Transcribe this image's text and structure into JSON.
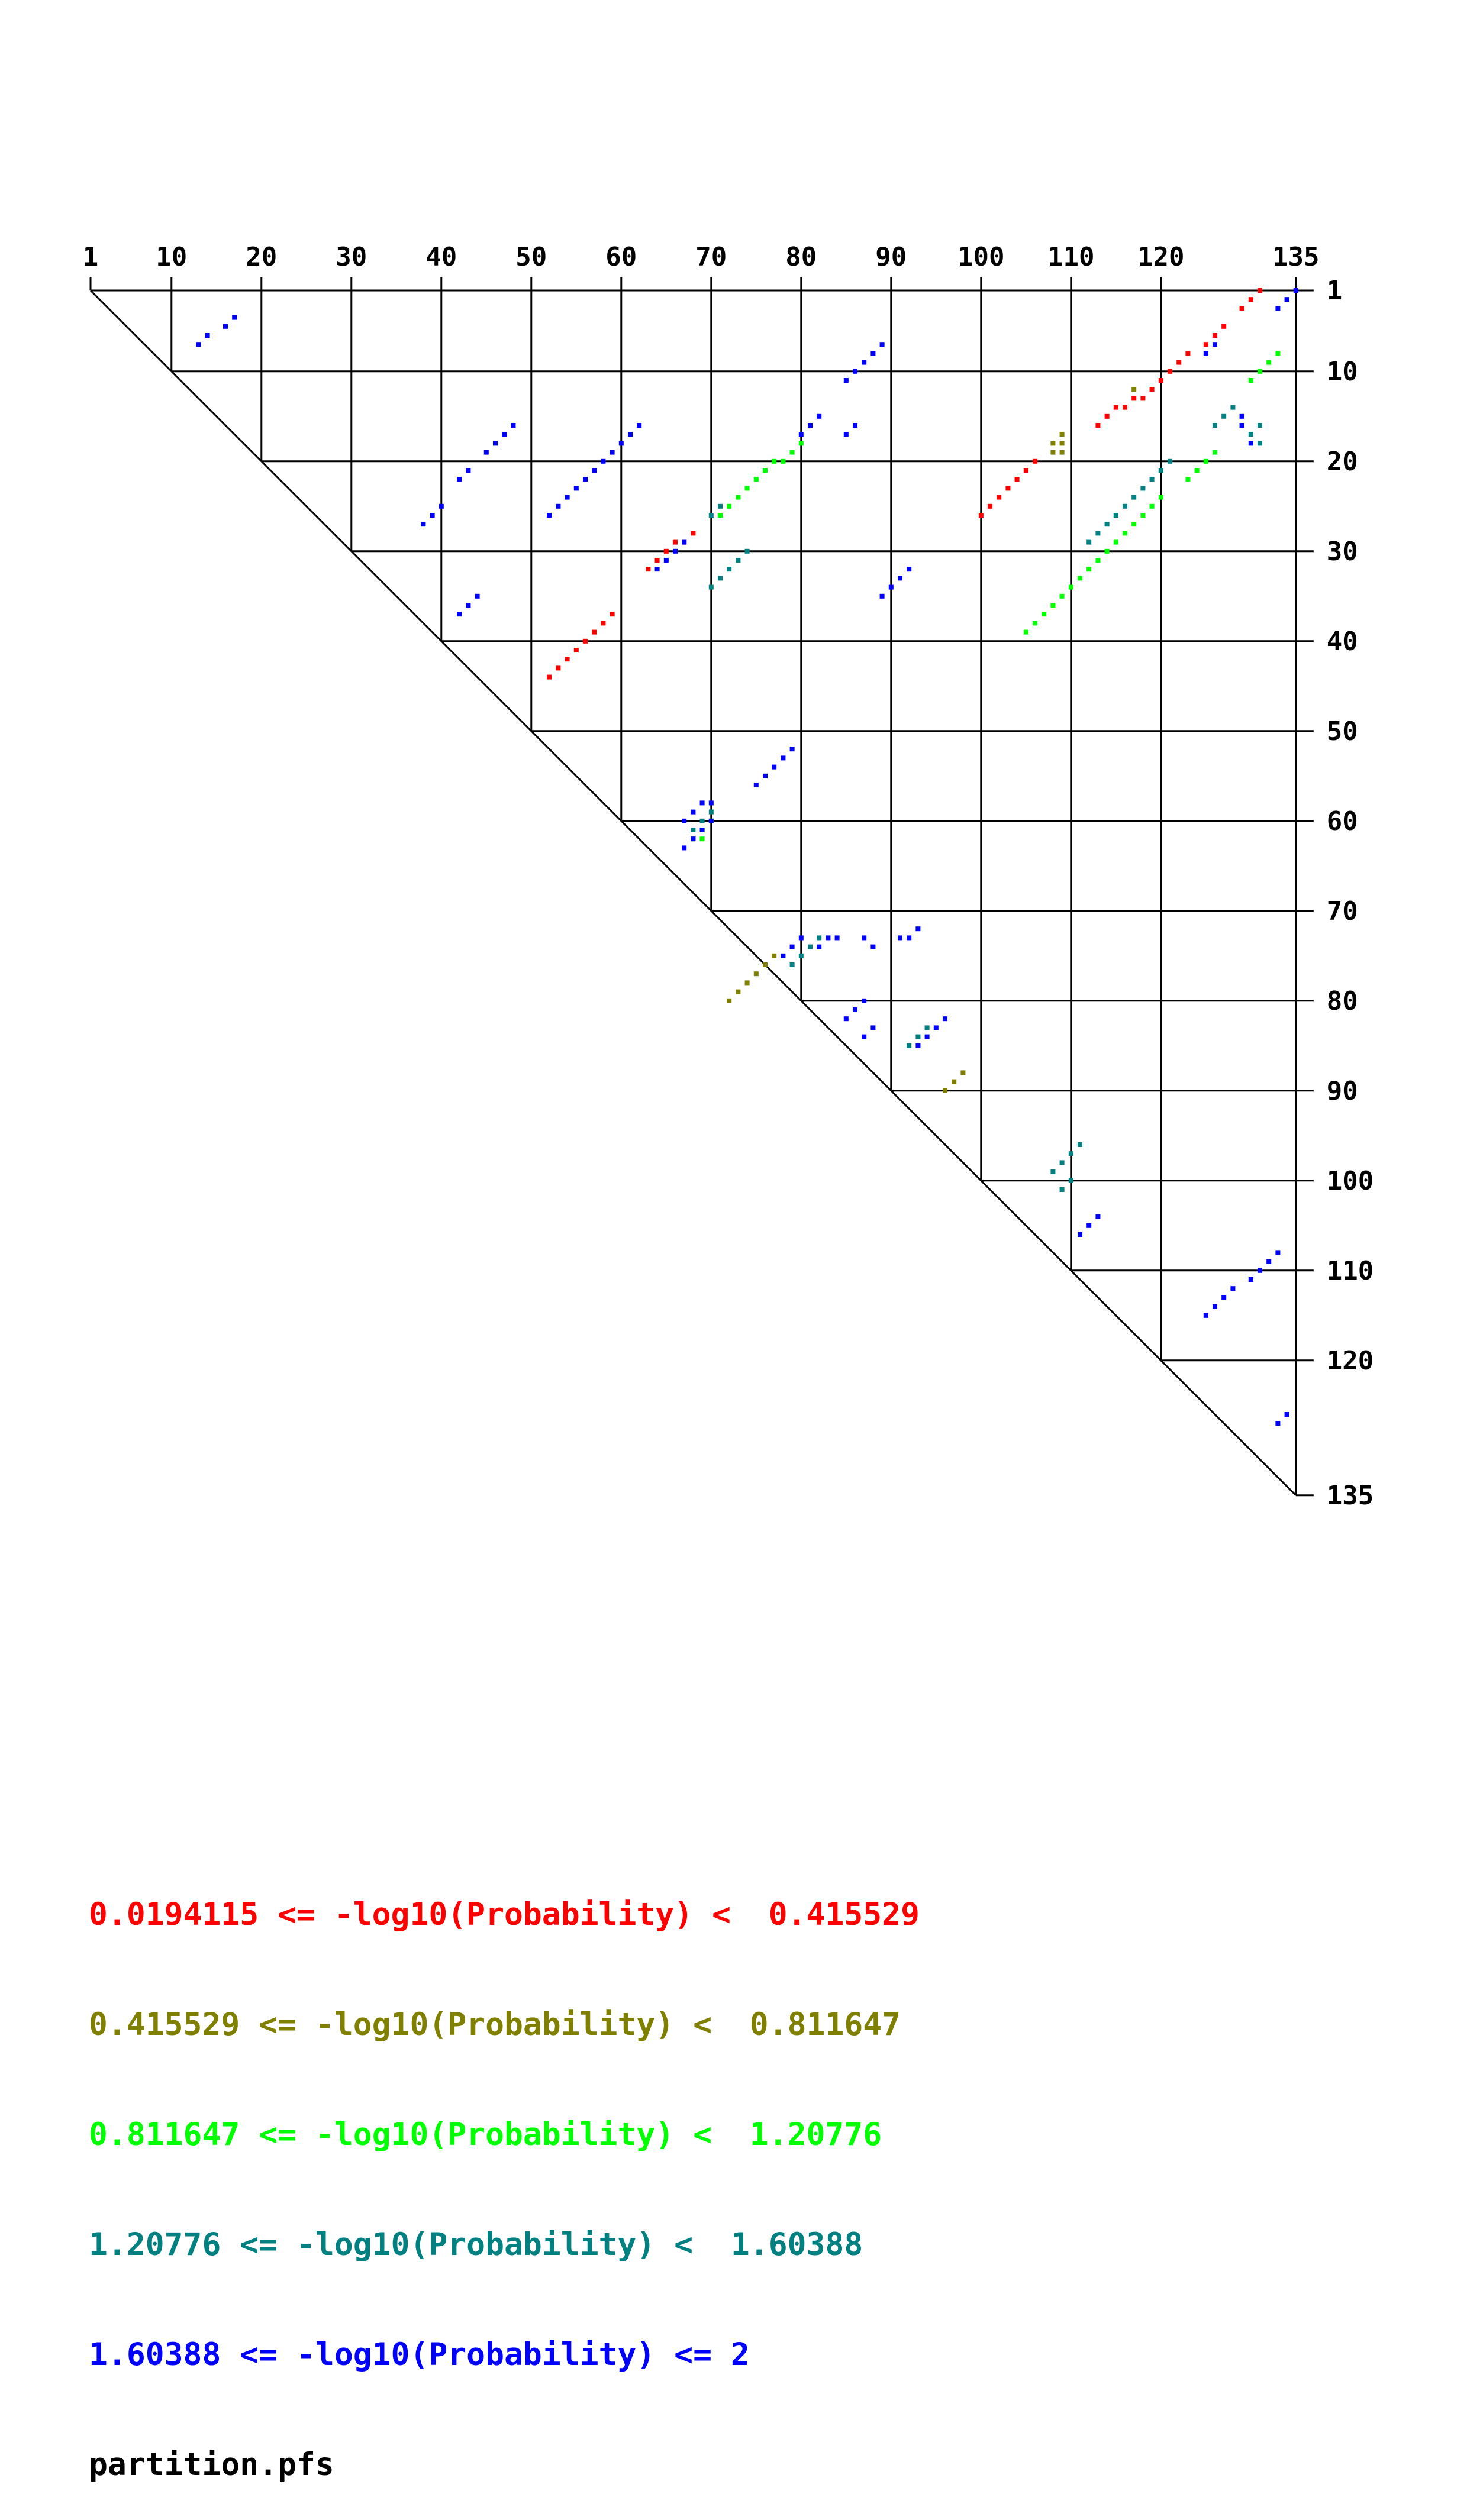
{
  "chart_data": {
    "type": "scatter",
    "title": "",
    "n": 135,
    "top_ticks": [
      1,
      10,
      20,
      30,
      40,
      50,
      60,
      70,
      80,
      90,
      100,
      110,
      120,
      135
    ],
    "right_ticks": [
      1,
      10,
      20,
      30,
      40,
      50,
      60,
      70,
      80,
      90,
      100,
      110,
      120,
      135
    ],
    "grid": true,
    "legend": [
      {
        "label": "0.0194115 <= -log10(Probability) <  0.415529",
        "color": "#ff0000"
      },
      {
        "label": "0.415529 <= -log10(Probability) <  0.811647",
        "color": "#808000"
      },
      {
        "label": "0.811647 <= -log10(Probability) <  1.20776",
        "color": "#00ff00"
      },
      {
        "label": "1.20776 <= -log10(Probability) <  1.60388",
        "color": "#008080"
      },
      {
        "label": "1.60388 <= -log10(Probability) <= 2",
        "color": "#0000ff"
      }
    ],
    "footer": "partition.pfs",
    "series": [
      {
        "name": "0.0194115 <= -log10(Probability) <  0.415529",
        "color": "#ff0000",
        "points": [
          [
            131,
            1
          ],
          [
            130,
            2
          ],
          [
            129,
            3
          ],
          [
            127,
            5
          ],
          [
            126,
            6
          ],
          [
            125,
            7
          ],
          [
            123,
            8
          ],
          [
            122,
            9
          ],
          [
            121,
            10
          ],
          [
            120,
            11
          ],
          [
            119,
            12
          ],
          [
            118,
            13
          ],
          [
            117,
            13
          ],
          [
            116,
            14
          ],
          [
            115,
            14
          ],
          [
            114,
            15
          ],
          [
            113,
            16
          ],
          [
            106,
            20
          ],
          [
            105,
            21
          ],
          [
            104,
            22
          ],
          [
            103,
            23
          ],
          [
            102,
            24
          ],
          [
            101,
            25
          ],
          [
            100,
            26
          ],
          [
            68,
            28
          ],
          [
            67,
            29
          ],
          [
            66,
            29
          ],
          [
            65,
            30
          ],
          [
            64,
            31
          ],
          [
            63,
            32
          ],
          [
            59,
            37
          ],
          [
            58,
            38
          ],
          [
            57,
            39
          ],
          [
            56,
            40
          ],
          [
            55,
            41
          ],
          [
            54,
            42
          ],
          [
            53,
            43
          ],
          [
            52,
            44
          ]
        ]
      },
      {
        "name": "0.415529 <= -log10(Probability) <  0.811647",
        "color": "#808000",
        "points": [
          [
            117,
            12
          ],
          [
            109,
            17
          ],
          [
            109,
            18
          ],
          [
            108,
            18
          ],
          [
            109,
            19
          ],
          [
            108,
            19
          ],
          [
            77,
            75
          ],
          [
            76,
            76
          ],
          [
            75,
            77
          ],
          [
            74,
            78
          ],
          [
            73,
            79
          ],
          [
            72,
            80
          ],
          [
            98,
            88
          ],
          [
            97,
            89
          ],
          [
            96,
            90
          ]
        ]
      },
      {
        "name": "0.811647 <= -log10(Probability) <  1.20776",
        "color": "#00ff00",
        "points": [
          [
            133,
            8
          ],
          [
            132,
            9
          ],
          [
            131,
            10
          ],
          [
            130,
            11
          ],
          [
            126,
            19
          ],
          [
            125,
            20
          ],
          [
            124,
            21
          ],
          [
            123,
            22
          ],
          [
            80,
            18
          ],
          [
            79,
            19
          ],
          [
            78,
            20
          ],
          [
            77,
            20
          ],
          [
            76,
            21
          ],
          [
            75,
            22
          ],
          [
            74,
            23
          ],
          [
            73,
            24
          ],
          [
            72,
            25
          ],
          [
            71,
            26
          ],
          [
            120,
            24
          ],
          [
            119,
            25
          ],
          [
            118,
            26
          ],
          [
            117,
            27
          ],
          [
            116,
            28
          ],
          [
            115,
            29
          ],
          [
            114,
            30
          ],
          [
            113,
            31
          ],
          [
            112,
            32
          ],
          [
            111,
            33
          ],
          [
            110,
            34
          ],
          [
            109,
            35
          ],
          [
            108,
            36
          ],
          [
            107,
            37
          ],
          [
            106,
            38
          ],
          [
            105,
            39
          ],
          [
            70,
            60
          ],
          [
            69,
            61
          ],
          [
            68,
            62
          ],
          [
            69,
            62
          ]
        ]
      },
      {
        "name": "1.20776 <= -log10(Probability) <  1.60388",
        "color": "#008080",
        "points": [
          [
            128,
            14
          ],
          [
            127,
            15
          ],
          [
            126,
            16
          ],
          [
            131,
            16
          ],
          [
            130,
            17
          ],
          [
            131,
            18
          ],
          [
            121,
            20
          ],
          [
            120,
            21
          ],
          [
            119,
            22
          ],
          [
            118,
            23
          ],
          [
            117,
            24
          ],
          [
            116,
            25
          ],
          [
            115,
            26
          ],
          [
            114,
            27
          ],
          [
            113,
            28
          ],
          [
            112,
            29
          ],
          [
            71,
            25
          ],
          [
            70,
            26
          ],
          [
            74,
            30
          ],
          [
            73,
            31
          ],
          [
            72,
            32
          ],
          [
            71,
            33
          ],
          [
            70,
            34
          ],
          [
            70,
            59
          ],
          [
            69,
            60
          ],
          [
            68,
            61
          ],
          [
            81,
            74
          ],
          [
            80,
            75
          ],
          [
            82,
            73
          ],
          [
            79,
            76
          ],
          [
            94,
            83
          ],
          [
            93,
            84
          ],
          [
            92,
            85
          ],
          [
            111,
            96
          ],
          [
            110,
            97
          ],
          [
            109,
            98
          ],
          [
            108,
            99
          ],
          [
            110,
            100
          ],
          [
            109,
            101
          ]
        ]
      },
      {
        "name": "1.60388 <= -log10(Probability) <= 2",
        "color": "#0000ff",
        "points": [
          [
            135,
            1
          ],
          [
            134,
            2
          ],
          [
            133,
            3
          ],
          [
            17,
            4
          ],
          [
            16,
            5
          ],
          [
            14,
            6
          ],
          [
            13,
            7
          ],
          [
            89,
            7
          ],
          [
            88,
            8
          ],
          [
            87,
            9
          ],
          [
            86,
            10
          ],
          [
            85,
            11
          ],
          [
            126,
            7
          ],
          [
            125,
            8
          ],
          [
            82,
            15
          ],
          [
            81,
            16
          ],
          [
            80,
            17
          ],
          [
            86,
            16
          ],
          [
            85,
            17
          ],
          [
            129,
            15
          ],
          [
            129,
            16
          ],
          [
            130,
            18
          ],
          [
            48,
            16
          ],
          [
            47,
            17
          ],
          [
            46,
            18
          ],
          [
            45,
            19
          ],
          [
            43,
            21
          ],
          [
            42,
            22
          ],
          [
            62,
            16
          ],
          [
            61,
            17
          ],
          [
            60,
            18
          ],
          [
            59,
            19
          ],
          [
            58,
            20
          ],
          [
            57,
            21
          ],
          [
            56,
            22
          ],
          [
            55,
            23
          ],
          [
            54,
            24
          ],
          [
            53,
            25
          ],
          [
            52,
            26
          ],
          [
            40,
            25
          ],
          [
            39,
            26
          ],
          [
            38,
            27
          ],
          [
            67,
            29
          ],
          [
            66,
            30
          ],
          [
            65,
            31
          ],
          [
            64,
            32
          ],
          [
            92,
            32
          ],
          [
            91,
            33
          ],
          [
            90,
            34
          ],
          [
            89,
            35
          ],
          [
            44,
            35
          ],
          [
            43,
            36
          ],
          [
            42,
            37
          ],
          [
            79,
            52
          ],
          [
            78,
            53
          ],
          [
            77,
            54
          ],
          [
            76,
            55
          ],
          [
            75,
            56
          ],
          [
            70,
            58
          ],
          [
            69,
            58
          ],
          [
            68,
            59
          ],
          [
            70,
            60
          ],
          [
            69,
            61
          ],
          [
            67,
            60
          ],
          [
            68,
            62
          ],
          [
            67,
            63
          ],
          [
            80,
            73
          ],
          [
            79,
            74
          ],
          [
            78,
            75
          ],
          [
            82,
            74
          ],
          [
            83,
            73
          ],
          [
            84,
            73
          ],
          [
            88,
            74
          ],
          [
            87,
            73
          ],
          [
            93,
            72
          ],
          [
            92,
            73
          ],
          [
            91,
            73
          ],
          [
            87,
            80
          ],
          [
            86,
            81
          ],
          [
            85,
            82
          ],
          [
            88,
            83
          ],
          [
            87,
            84
          ],
          [
            96,
            82
          ],
          [
            95,
            83
          ],
          [
            94,
            84
          ],
          [
            93,
            85
          ],
          [
            113,
            104
          ],
          [
            112,
            105
          ],
          [
            111,
            106
          ],
          [
            133,
            108
          ],
          [
            132,
            109
          ],
          [
            131,
            110
          ],
          [
            130,
            111
          ],
          [
            128,
            112
          ],
          [
            127,
            113
          ],
          [
            126,
            114
          ],
          [
            125,
            115
          ],
          [
            134,
            126
          ],
          [
            133,
            127
          ]
        ]
      }
    ]
  }
}
